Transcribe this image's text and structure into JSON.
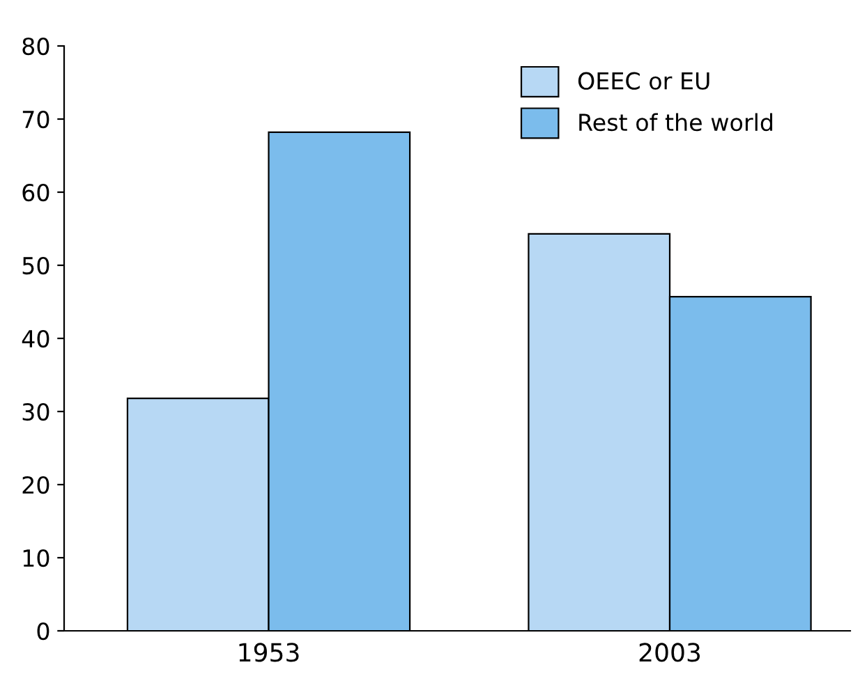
{
  "chart_data": {
    "type": "bar",
    "categories": [
      "1953",
      "2003"
    ],
    "series": [
      {
        "name": "OEEC or EU",
        "color": "#b7d8f4",
        "values": [
          31.8,
          54.3
        ]
      },
      {
        "name": "Rest of the world",
        "color": "#7bbcec",
        "values": [
          68.2,
          45.7
        ]
      }
    ],
    "ylim": [
      0,
      80
    ],
    "yticks": [
      0,
      10,
      20,
      30,
      40,
      50,
      60,
      70,
      80
    ],
    "grid": false,
    "legend": "top right"
  }
}
